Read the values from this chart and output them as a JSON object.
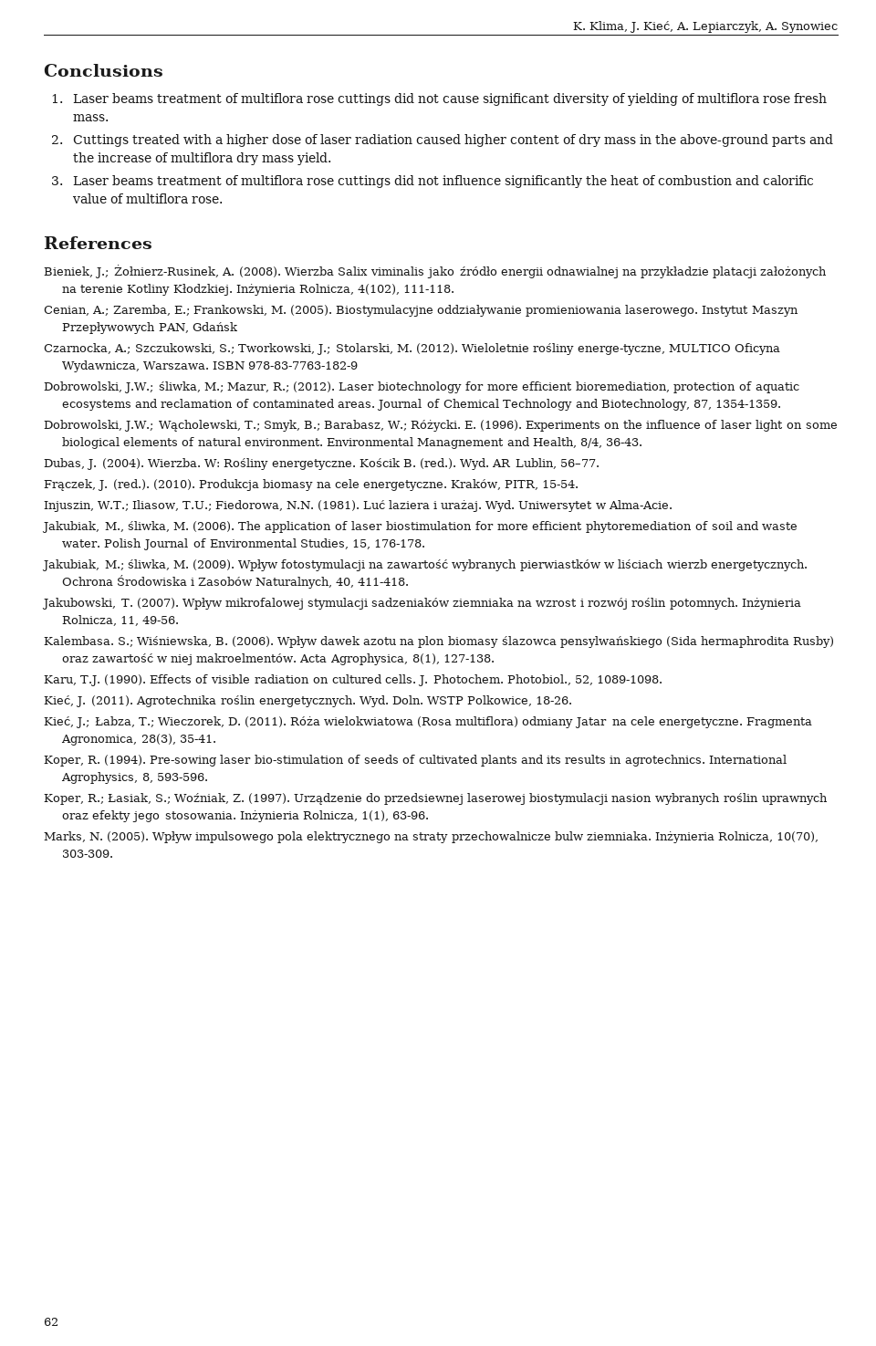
{
  "header": "K. Klima, J. Kieć, A. Lepiarczyk, A. Synowiec",
  "page_number": "62",
  "background_color": "#ffffff",
  "text_color": "#1a1a1a",
  "conclusions_title": "Conclusions",
  "conclusions": [
    "Laser beams treatment of multiflora rose cuttings did not cause significant diversity of yielding of multiflora rose fresh mass.",
    "Cuttings treated with a higher dose of laser radiation caused higher content of dry mass in the above-ground parts and the increase of multiflora dry mass yield.",
    "Laser beams treatment of multiflora rose cuttings did not influence significantly the heat of combustion and calorific value of multiflora rose."
  ],
  "references_title": "References",
  "references": [
    [
      [
        "Bieniek, J.; Żołnierz-Rusinek, A. (2008). Wierzba Salix viminalis jako źródło energii odnawialnej na przykładzie platacji założonych na terenie Kotliny Kłodzkiej. ",
        false
      ],
      [
        "Inżynieria Rolnicza,",
        true
      ],
      [
        " 4(102), 111-118.",
        false
      ]
    ],
    [
      [
        "Cenian, A.; Zaremba, E.; Frankowski, M. (2005). ",
        false
      ],
      [
        "Biostymulacyjne oddziaływanie promieniowania laserowego.",
        true
      ],
      [
        " Instytut Maszyn Przepływowych PAN, Gdańsk",
        false
      ]
    ],
    [
      [
        "Czarnocka, A.; Szczukowski, S.; Tworkowski, J.; Stolarski, M. (2012). ",
        false
      ],
      [
        "Wieloletnie rośliny energe-tyczne,",
        true
      ],
      [
        " MULTICO Oficyna Wydawnicza, Warszawa. ISBN 978-83-7763-182-9",
        false
      ]
    ],
    [
      [
        "Dobrowolski, J.W.; śliwka, M.; Mazur, R.; (2012). Laser biotechnology for more efficient bioremediation, protection of aquatic ecosystems and reclamation of contaminated areas. ",
        false
      ],
      [
        "Journal of Chemical Technology and Biotechnology,",
        true
      ],
      [
        " 87, 1354-1359.",
        false
      ]
    ],
    [
      [
        "Dobrowolski, J.W.; Wącholewski, T.; Smyk, B.; Barabasz, W.; Różycki. E. (1996). Experiments on the influence of laser light on some biological elements of natural environment. ",
        false
      ],
      [
        "Environmental Managnement and Health,",
        true
      ],
      [
        " 8/4, 36-43.",
        false
      ]
    ],
    [
      [
        "Dubas, J. (2004). ",
        false
      ],
      [
        "Wierzba.",
        true
      ],
      [
        " W: Rośliny energetyczne. Kościk B. (red.). Wyd. AR Lublin, 56–77.",
        false
      ]
    ],
    [
      [
        "Frączek, J. (red.). (2010). ",
        false
      ],
      [
        "Produkcja biomasy na cele energetyczne.",
        true
      ],
      [
        " Kraków, PITR, 15-54.",
        false
      ]
    ],
    [
      [
        "Injuszin, W.T.; Iliasow, T.U.; Fiedorowa, N.N. (1981). ",
        false
      ],
      [
        "Luć laziera i urażaj.",
        true
      ],
      [
        " Wyd. Uniwersytet w Alma-Acie.",
        false
      ]
    ],
    [
      [
        "Jakubiak, M., śliwka, M. (2006). The application of laser biostimulation for more efficient phytoremediation of soil and waste water. ",
        false
      ],
      [
        "Polish Journal of Environmental Studies,",
        true
      ],
      [
        " 15, 176-178.",
        false
      ]
    ],
    [
      [
        "Jakubiak, M.; śliwka, M. (2009). Wpływ fotostymulacji na zawartość wybranych pierwiastków w liściach wierzb energetycznych. ",
        false
      ],
      [
        "Ochrona Środowiska i Zasobów Naturalnych,",
        true
      ],
      [
        " 40, 411-418.",
        false
      ]
    ],
    [
      [
        "Jakubowski, T. (2007). Wpływ mikrofalowej stymulacji sadzeniaków ziemniaka na wzrost i rozwój roślin potomnych. ",
        false
      ],
      [
        "Inżynieria Rolnicza,",
        true
      ],
      [
        " 11, 49-56.",
        false
      ]
    ],
    [
      [
        "Kalembasa. S.; Wiśniewska, B. (2006). Wpływ dawek azotu na plon biomasy ślazowca pensylwańskiego (Sida hermaphrodita Rusby) oraz zawartość w niej makroelmentów. ",
        false
      ],
      [
        "Acta Agrophysica,",
        true
      ],
      [
        " 8(1), 127-138.",
        false
      ]
    ],
    [
      [
        "Karu, T.J. (1990). Effects of visible radiation on cultured cells. J. Photochem. Photobiol., 52, 1089-1098.",
        false
      ]
    ],
    [
      [
        "Kieć, J. (2011). ",
        false
      ],
      [
        "Agrotechnika roślin energetycznych.",
        true
      ],
      [
        " Wyd. Doln. WSTP Polkowice, 18-26.",
        false
      ]
    ],
    [
      [
        "Kieć, J.; Łabza, T.; Wieczorek, D. (2011). Róża wielokwiatowa (Rosa multiflora) odmiany Jatar na cele energetyczne. ",
        false
      ],
      [
        "Fragmenta Agronomica,",
        true
      ],
      [
        " 28(3), 35-41.",
        false
      ]
    ],
    [
      [
        "Koper, R. (1994). Pre-sowing laser bio-stimulation of seeds of cultivated plants and its results in agrotechnics. ",
        false
      ],
      [
        "International Agrophysics,",
        true
      ],
      [
        " 8, 593-596.",
        false
      ]
    ],
    [
      [
        "Koper, R.; Łasiak, S.; Woźniak, Z. (1997). Urządzenie do przedsiewnej laserowej biostymulacji nasion wybranych roślin uprawnych oraz efekty jego stosowania. ",
        false
      ],
      [
        "Inżynieria Rolnicza,",
        true
      ],
      [
        " 1(1), 63-96.",
        false
      ]
    ],
    [
      [
        "Marks, N. (2005). Wpływ impulsowego pola elektrycznego na straty przechowalnicze bulw ziemniaka. ",
        false
      ],
      [
        "Inżynieria Rolnicza,",
        true
      ],
      [
        " 10(70), 303-309.",
        false
      ]
    ]
  ]
}
